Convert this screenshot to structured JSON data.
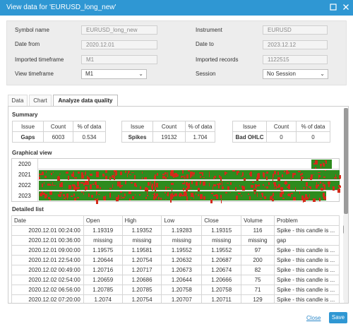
{
  "window": {
    "title": "View data for 'EURUSD_long_new'",
    "icons": [
      "restore-icon",
      "close-icon"
    ]
  },
  "params": {
    "symbol_name_label": "Symbol name",
    "symbol_name_value": "EURUSD_long_new",
    "instrument_label": "Instrument",
    "instrument_value": "EURUSD",
    "date_from_label": "Date from",
    "date_from_value": "2020.12.01",
    "date_to_label": "Date to",
    "date_to_value": "2023.12.12",
    "imported_timeframe_label": "Imported timeframe",
    "imported_timeframe_value": "M1",
    "imported_records_label": "Imported records",
    "imported_records_value": "1122515",
    "view_timeframe_label": "View timeframe",
    "view_timeframe_value": "M1",
    "session_label": "Session",
    "session_value": "No Session"
  },
  "tabs": [
    {
      "label": "Data",
      "active": false
    },
    {
      "label": "Chart",
      "active": false
    },
    {
      "label": "Analyze data quality",
      "active": true
    }
  ],
  "summary": {
    "title": "Summary",
    "headers": [
      "Issue",
      "Count",
      "% of data"
    ],
    "items": [
      {
        "issue": "Gaps",
        "count": "6003",
        "percent": "0.534"
      },
      {
        "issue": "Spikes",
        "count": "19132",
        "percent": "1.704"
      },
      {
        "issue": "Bad OHLC",
        "count": "0",
        "percent": "0"
      }
    ]
  },
  "graphical": {
    "title": "Graphical view",
    "colors": {
      "good": "#2e8b1e",
      "bad": "#d42a1a"
    },
    "rows": [
      {
        "year": "2020",
        "coverage_start": 0.905,
        "coverage_end": 0.975
      },
      {
        "year": "2021",
        "coverage_start": 0.0,
        "coverage_end": 1.0
      },
      {
        "year": "2022",
        "coverage_start": 0.0,
        "coverage_end": 1.0
      },
      {
        "year": "2023",
        "coverage_start": 0.0,
        "coverage_end": 0.955
      }
    ]
  },
  "detailed": {
    "title": "Detailed list",
    "headers": [
      "Date",
      "Open",
      "High",
      "Low",
      "Close",
      "Volume",
      "Problem"
    ],
    "rows": [
      [
        "2020.12.01 00:24:00",
        "1.19319",
        "1.19352",
        "1.19283",
        "1.19315",
        "116",
        "Spike - this candle is ..."
      ],
      [
        "2020.12.01 00:36:00",
        "missing",
        "missing",
        "missing",
        "missing",
        "missing",
        "gap"
      ],
      [
        "2020.12.01 09:00:00",
        "1.19575",
        "1.19581",
        "1.19552",
        "1.19552",
        "97",
        "Spike - this candle is ..."
      ],
      [
        "2020.12.01 22:54:00",
        "1.20644",
        "1.20754",
        "1.20632",
        "1.20687",
        "200",
        "Spike - this candle is ..."
      ],
      [
        "2020.12.02 00:49:00",
        "1.20716",
        "1.20717",
        "1.20673",
        "1.20674",
        "82",
        "Spike - this candle is ..."
      ],
      [
        "2020.12.02 02:54:00",
        "1.20659",
        "1.20686",
        "1.20644",
        "1.20666",
        "75",
        "Spike - this candle is ..."
      ],
      [
        "2020.12.02 06:56:00",
        "1.20785",
        "1.20785",
        "1.20758",
        "1.20758",
        "71",
        "Spike - this candle is ..."
      ],
      [
        "2020.12.02 07:20:00",
        "1.2074",
        "1.20754",
        "1.20707",
        "1.20711",
        "129",
        "Spike - this candle is ..."
      ]
    ]
  },
  "footer": {
    "close_label": "Close",
    "save_label": "Save"
  }
}
